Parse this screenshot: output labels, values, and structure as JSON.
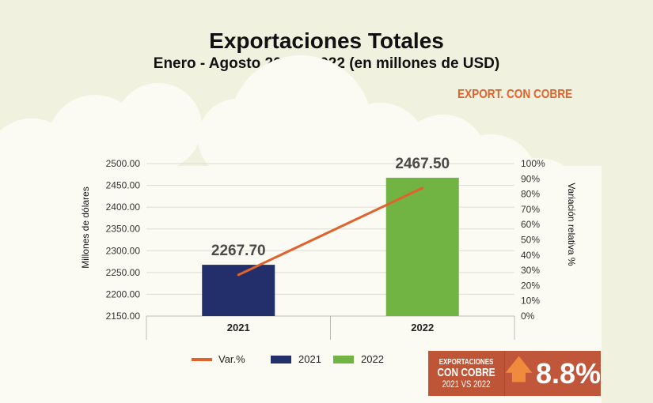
{
  "header": {
    "title": "Exportaciones Totales",
    "subtitle": "Enero - Agosto 2021 - 2022 (en millones de USD)",
    "tag": "EXPORT. CON COBRE"
  },
  "badge": {
    "line1": "EXPORTACIONES",
    "line2": "CON COBRE",
    "line3": "2021 VS 2022",
    "value": "8.8%",
    "icon": "arrow-up-icon"
  },
  "colors": {
    "background": "#f1f1e0",
    "bar_2021": "#232f6b",
    "bar_2022": "#72b443",
    "line": "#e0622c",
    "accent": "#c0573a"
  },
  "chart_data": {
    "type": "bar",
    "categories": [
      "2021",
      "2022"
    ],
    "series": [
      {
        "name": "2021",
        "type": "bar",
        "values": [
          2267.7,
          null
        ],
        "labels": [
          "2267.70",
          ""
        ]
      },
      {
        "name": "2022",
        "type": "bar",
        "values": [
          null,
          2467.5
        ],
        "labels": [
          "",
          "2467.50"
        ]
      },
      {
        "name": "Var.%",
        "type": "line",
        "axis": "right",
        "values": [
          27,
          84
        ]
      }
    ],
    "ylabel": "Millones de dólares",
    "y2label": "Variación relativa %",
    "ylim": [
      2150,
      2500
    ],
    "yticks": [
      "2150.00",
      "2200.00",
      "2250.00",
      "2300.00",
      "2350.00",
      "2400.00",
      "2450.00",
      "2500.00"
    ],
    "y2lim": [
      0,
      100
    ],
    "y2ticks": [
      "0%",
      "10%",
      "20%",
      "30%",
      "40%",
      "50%",
      "60%",
      "70%",
      "80%",
      "90%",
      "100%"
    ],
    "grid": true,
    "legend": {
      "placement": "bottom",
      "entries": [
        "Var.%",
        "2021",
        "2022"
      ]
    }
  }
}
